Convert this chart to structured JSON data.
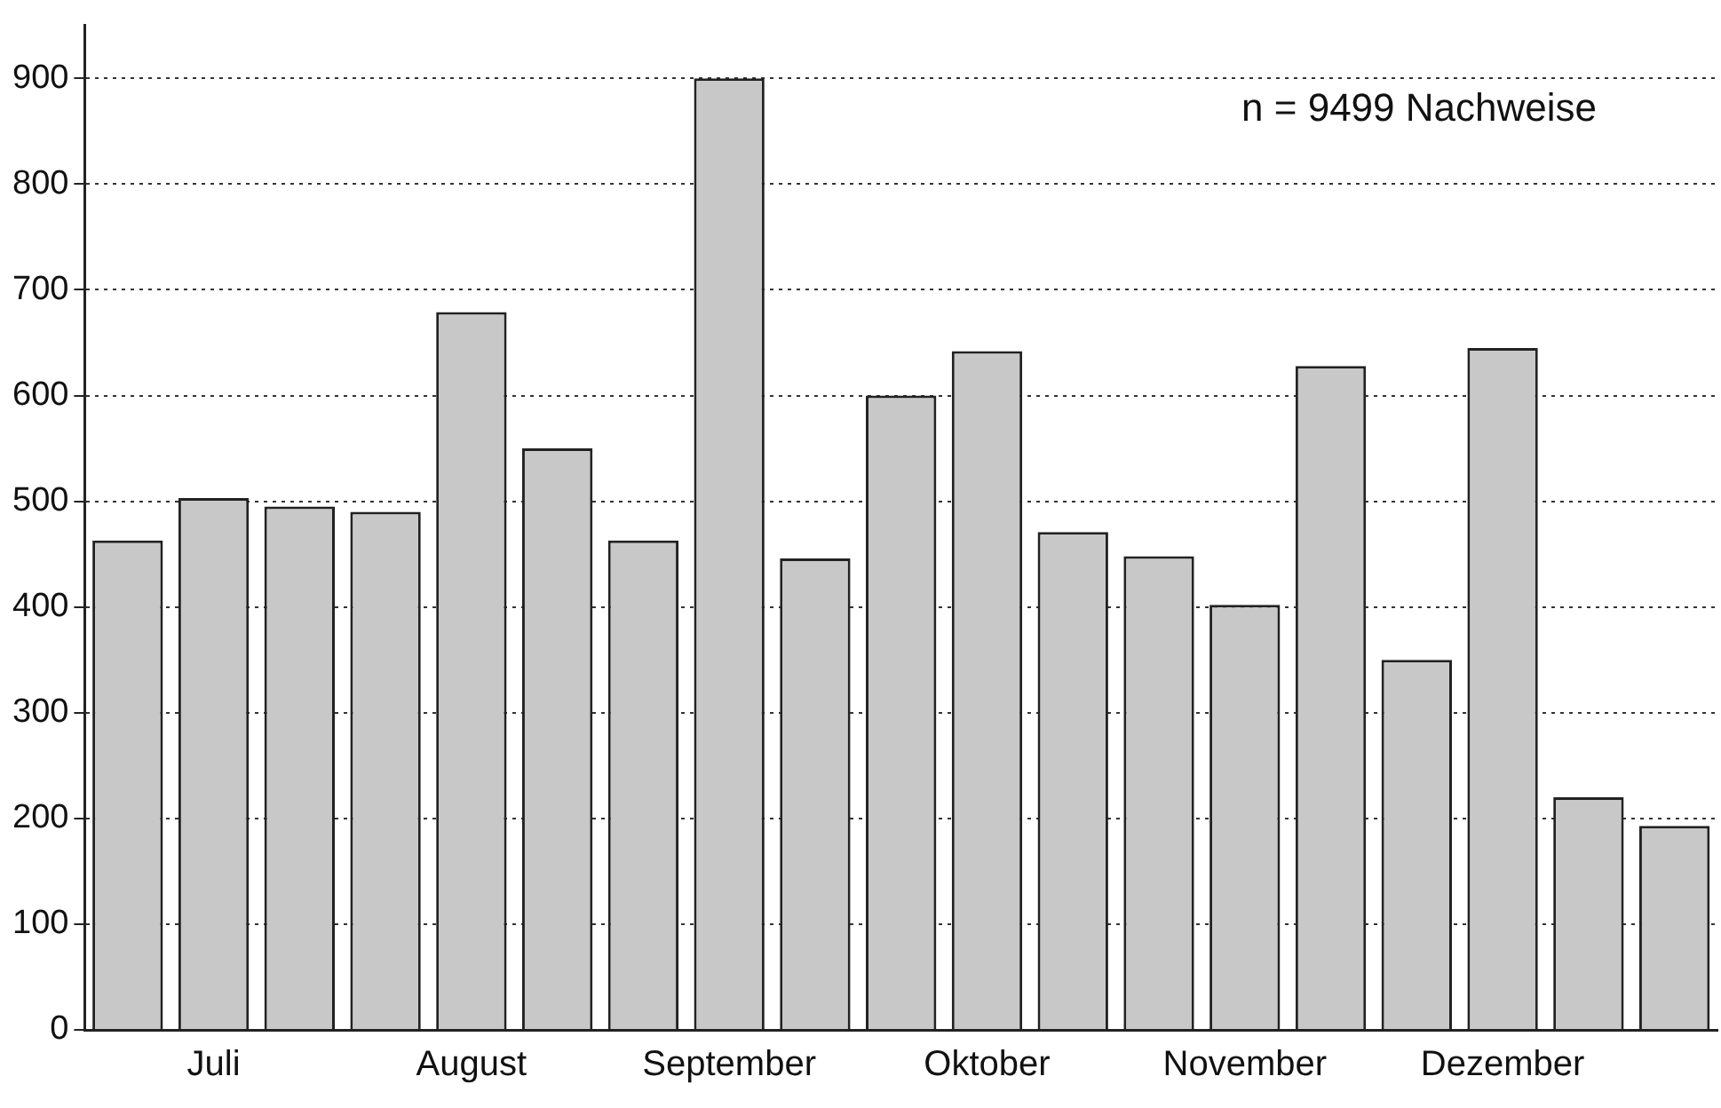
{
  "chart_data": {
    "type": "bar",
    "categories": [
      null,
      "Juli",
      null,
      null,
      "August",
      null,
      null,
      "September",
      null,
      null,
      "Oktober",
      null,
      null,
      "November",
      null,
      null,
      "Dezember",
      null,
      null
    ],
    "values": [
      463,
      503,
      495,
      490,
      679,
      550,
      463,
      900,
      446,
      600,
      642,
      471,
      448,
      402,
      628,
      350,
      645,
      220,
      193
    ],
    "color": "#c8c8c8",
    "ylim": [
      0,
      950
    ],
    "yticks": [
      0,
      100,
      200,
      300,
      400,
      500,
      600,
      700,
      800,
      900
    ],
    "grid": "y",
    "line_style": "dotted",
    "annotations": [
      "n = 9499 Nachweise"
    ]
  }
}
